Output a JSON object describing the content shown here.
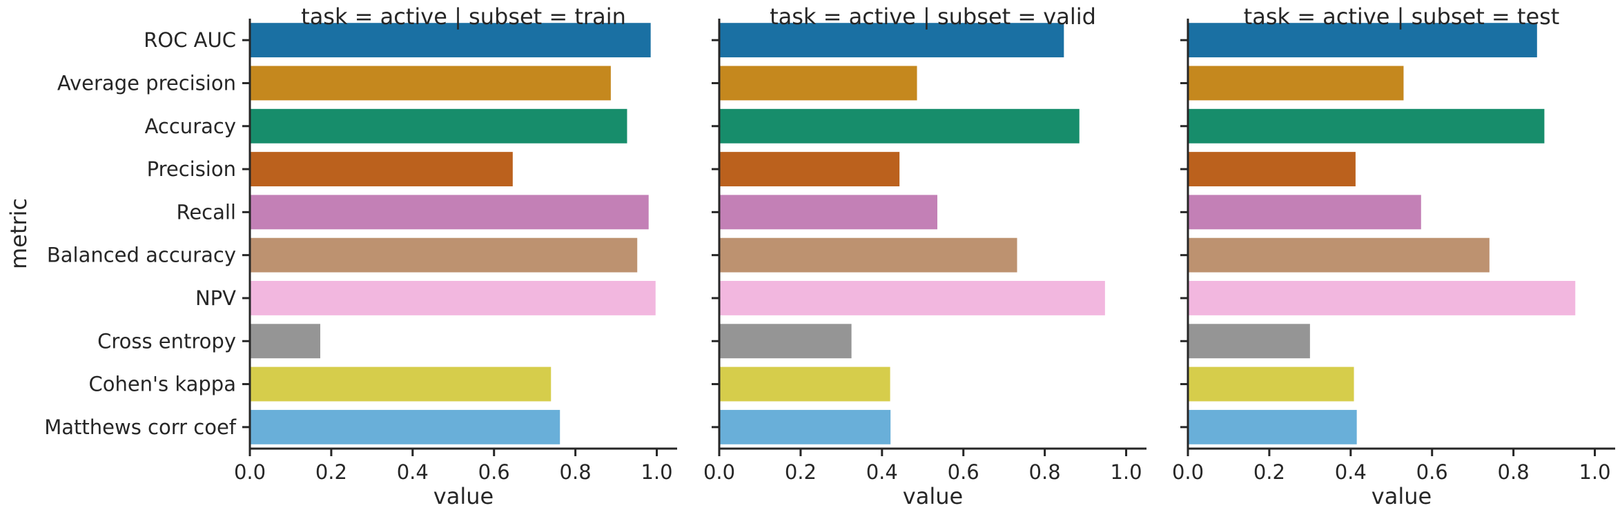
{
  "colors": [
    "#1a70a3",
    "#c5881e",
    "#178d6b",
    "#bb611d",
    "#c380b6",
    "#bd9270",
    "#f2b7df",
    "#959595",
    "#d6cd4b",
    "#69afd9"
  ],
  "chart_data": {
    "type": "bar",
    "orientation": "horizontal",
    "ylabel": "metric",
    "categories": [
      "ROC AUC",
      "Average precision",
      "Accuracy",
      "Precision",
      "Recall",
      "Balanced accuracy",
      "NPV",
      "Cross entropy",
      "Cohen's kappa",
      "Matthews corr coef"
    ],
    "panels": [
      {
        "title": "task = active | subset = train",
        "xlabel": "value",
        "xlim": [
          0,
          1.05
        ],
        "xticks": [
          "0.0",
          "0.2",
          "0.4",
          "0.6",
          "0.8",
          "1.0"
        ],
        "values": [
          0.985,
          0.887,
          0.927,
          0.646,
          0.98,
          0.952,
          0.997,
          0.173,
          0.74,
          0.762
        ]
      },
      {
        "title": "task = active | subset = valid",
        "xlabel": "value",
        "xlim": [
          0,
          1.05
        ],
        "xticks": [
          "0.0",
          "0.2",
          "0.4",
          "0.6",
          "0.8",
          "1.0"
        ],
        "values": [
          0.847,
          0.486,
          0.885,
          0.443,
          0.536,
          0.732,
          0.948,
          0.325,
          0.42,
          0.421
        ]
      },
      {
        "title": "task = active | subset = test",
        "xlabel": "value",
        "xlim": [
          0,
          1.05
        ],
        "xticks": [
          "0.0",
          "0.2",
          "0.4",
          "0.6",
          "0.8",
          "1.0"
        ],
        "values": [
          0.858,
          0.53,
          0.876,
          0.412,
          0.573,
          0.741,
          0.952,
          0.3,
          0.408,
          0.415
        ]
      }
    ]
  }
}
